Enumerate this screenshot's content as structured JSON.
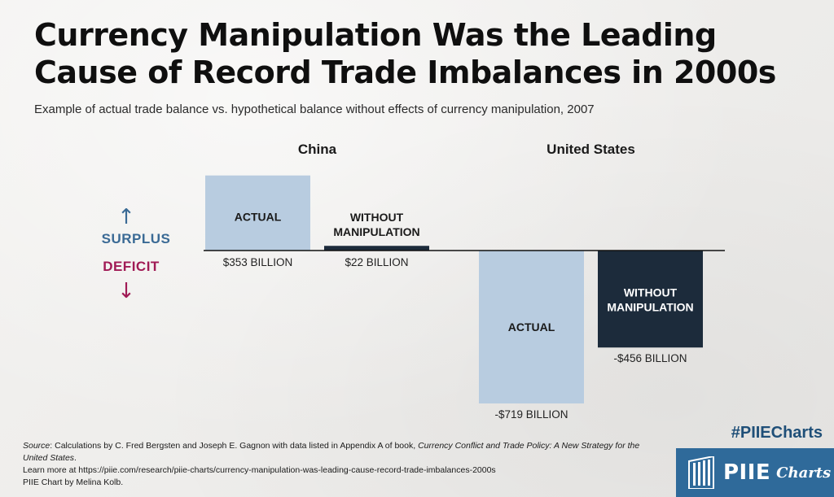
{
  "title": "Currency Manipulation Was the Leading Cause of Record Trade Imbalances in 2000s",
  "subtitle": "Example of actual trade balance vs. hypothetical balance without effects of currency manipulation, 2007",
  "side_labels": {
    "surplus": "SURPLUS",
    "deficit": "DEFICIT",
    "up_arrow": "↑",
    "down_arrow": "↓"
  },
  "colors": {
    "actual": "#b8cce0",
    "without": "#1c2b3b",
    "surplus": "#3a6a95",
    "deficit": "#a01a55",
    "axis": "#111111"
  },
  "chart_data": {
    "type": "bar",
    "unit": "billion US$",
    "groups": [
      {
        "name": "China",
        "bars": [
          {
            "label": "ACTUAL",
            "value": 353,
            "value_label": "$353 BILLION",
            "kind": "actual"
          },
          {
            "label": "WITHOUT MANIPULATION",
            "value": 22,
            "value_label": "$22 BILLION",
            "kind": "without"
          }
        ]
      },
      {
        "name": "United States",
        "bars": [
          {
            "label": "ACTUAL",
            "value": -719,
            "value_label": "-$719 BILLION",
            "kind": "actual"
          },
          {
            "label": "WITHOUT MANIPULATION",
            "value": -456,
            "value_label": "-$456 BILLION",
            "kind": "without"
          }
        ]
      }
    ]
  },
  "footer": {
    "source_label": "Source",
    "source_text_1": ": Calculations by C. Fred Bergsten and Joseph E. Gagnon with data listed in Appendix A of book, ",
    "book_title": "Currency Conflict and Trade Policy: A New Strategy for the United States",
    "source_text_2": ".",
    "learn_more": "Learn more at https://piie.com/research/piie-charts/currency-manipulation-was-leading-cause-record-trade-imbalances-2000s",
    "credit": "PIIE Chart by Melina Kolb."
  },
  "hashtag": "#PIIECharts",
  "logo": {
    "main": "PIIE",
    "sub": "Charts"
  }
}
